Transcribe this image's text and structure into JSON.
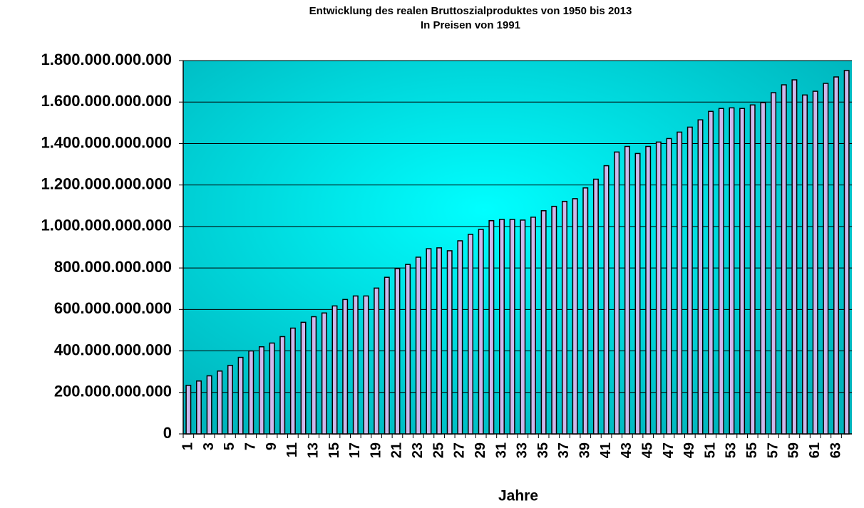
{
  "chart_data": {
    "type": "bar",
    "title": "Entwicklung des realen Bruttoszialproduktes von 1950 bis 2013",
    "subtitle": "In Preisen von 1991",
    "x_label": "Jahre",
    "categories": [
      "1",
      null,
      "3",
      null,
      "5",
      null,
      "7",
      null,
      "9",
      null,
      "11",
      null,
      "13",
      null,
      "15",
      null,
      "17",
      null,
      "19",
      null,
      "21",
      null,
      "23",
      null,
      "25",
      null,
      "27",
      null,
      "29",
      null,
      "31",
      null,
      "33",
      null,
      "35",
      null,
      "37",
      null,
      "39",
      null,
      "41",
      null,
      "43",
      null,
      "45",
      null,
      "47",
      null,
      "49",
      null,
      "51",
      null,
      "53",
      null,
      "55",
      null,
      "57",
      null,
      "59",
      null,
      "61",
      null,
      "63",
      null
    ],
    "values": [
      234000000000,
      255000000000,
      280000000000,
      303000000000,
      330000000000,
      369000000000,
      400000000000,
      420000000000,
      438000000000,
      469000000000,
      510000000000,
      538000000000,
      565000000000,
      583000000000,
      617000000000,
      648000000000,
      665000000000,
      665000000000,
      703000000000,
      755000000000,
      797000000000,
      817000000000,
      852000000000,
      893000000000,
      897000000000,
      883000000000,
      931000000000,
      962000000000,
      986000000000,
      1028000000000,
      1034000000000,
      1034000000000,
      1031000000000,
      1045000000000,
      1076000000000,
      1097000000000,
      1121000000000,
      1134000000000,
      1186000000000,
      1228000000000,
      1293000000000,
      1359000000000,
      1386000000000,
      1352000000000,
      1386000000000,
      1407000000000,
      1424000000000,
      1455000000000,
      1479000000000,
      1514000000000,
      1555000000000,
      1569000000000,
      1572000000000,
      1569000000000,
      1586000000000,
      1597000000000,
      1645000000000,
      1683000000000,
      1707000000000,
      1634000000000,
      1652000000000,
      1690000000000,
      1721000000000,
      1752000000000
    ],
    "color": "#cdb8ec",
    "ylim": [
      0,
      1800000000000
    ],
    "yticks": [
      0,
      {
        "value": 200000000000,
        "label": "200.000.000.000"
      },
      {
        "value": 400000000000,
        "label": "400.000.000.000"
      },
      {
        "value": 600000000000,
        "label": "600.000.000.000"
      },
      {
        "value": 800000000000,
        "label": "800.000.000.000"
      },
      {
        "value": 1000000000000,
        "label": "1.000.000.000.000"
      },
      {
        "value": 1200000000000,
        "label": "1.200.000.000.000"
      },
      {
        "value": 1400000000000,
        "label": "1.400.000.000.000"
      },
      {
        "value": 1600000000000,
        "label": "1.600.000.000.000"
      },
      {
        "value": 1800000000000,
        "label": "1.800.000.000.000"
      }
    ],
    "grid": true
  }
}
